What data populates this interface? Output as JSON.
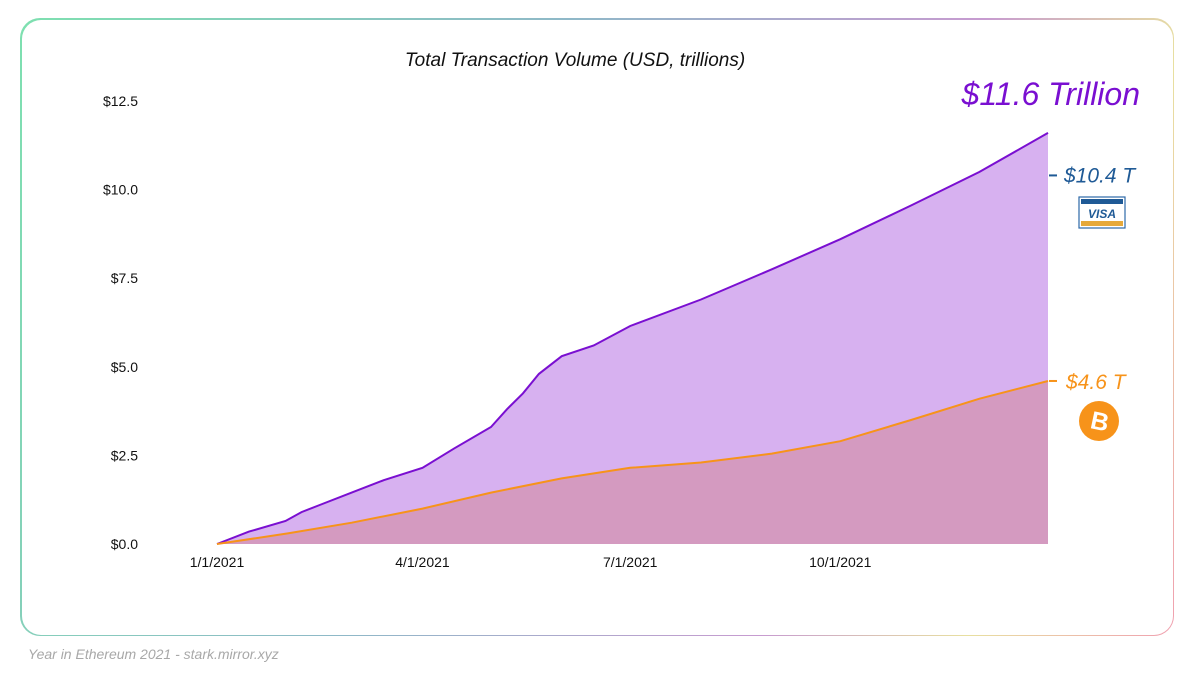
{
  "chart_data": {
    "type": "area",
    "title": "Total Transaction Volume (USD, trillions)",
    "xlabel": "",
    "ylabel": "",
    "ylim": [
      0,
      12.5
    ],
    "xlim": [
      "2021-01-01",
      "2021-12-31"
    ],
    "y_ticks": [
      "$0.0",
      "$2.5",
      "$5.0",
      "$7.5",
      "$10.0",
      "$12.5"
    ],
    "y_tick_values": [
      0,
      2.5,
      5,
      7.5,
      10,
      12.5
    ],
    "x_ticks": [
      "1/1/2021",
      "4/1/2021",
      "7/1/2021",
      "10/1/2021"
    ],
    "x_tick_values": [
      "2021-01-01",
      "2021-04-01",
      "2021-07-01",
      "2021-10-01"
    ],
    "grid": false,
    "series": [
      {
        "color": "#7a0fd1",
        "fill": "#d7b1f0",
        "x": [
          "2021-01-01",
          "2021-01-15",
          "2021-01-31",
          "2021-02-07",
          "2021-02-15",
          "2021-03-01",
          "2021-03-15",
          "2021-04-01",
          "2021-04-15",
          "2021-05-01",
          "2021-05-08",
          "2021-05-15",
          "2021-05-22",
          "2021-06-01",
          "2021-06-15",
          "2021-07-01",
          "2021-08-01",
          "2021-09-01",
          "2021-10-01",
          "2021-11-01",
          "2021-12-01",
          "2021-12-31"
        ],
        "values": [
          0,
          0.35,
          0.65,
          0.9,
          1.1,
          1.45,
          1.8,
          2.15,
          2.7,
          3.3,
          3.8,
          4.25,
          4.8,
          5.3,
          5.6,
          6.15,
          6.9,
          7.75,
          8.6,
          9.55,
          10.5,
          11.6
        ]
      },
      {
        "color": "#f7931a",
        "fill": "#d49ac0",
        "x": [
          "2021-01-01",
          "2021-02-01",
          "2021-03-01",
          "2021-04-01",
          "2021-05-01",
          "2021-06-01",
          "2021-07-01",
          "2021-08-01",
          "2021-09-01",
          "2021-10-01",
          "2021-11-01",
          "2021-12-01",
          "2021-12-31"
        ],
        "values": [
          0,
          0.3,
          0.6,
          1.0,
          1.45,
          1.85,
          2.15,
          2.3,
          2.55,
          2.9,
          3.5,
          4.1,
          4.6
        ]
      }
    ],
    "annotations": {
      "eth_total": {
        "text": "$11.6 Trillion",
        "color": "#7a0fd1"
      },
      "visa": {
        "text": "$10.4 T",
        "value": 10.4,
        "color": "#1f5a96",
        "logo": "VISA",
        "icon": "visa-card-icon"
      },
      "btc": {
        "text": "$4.6 T",
        "value": 4.6,
        "color": "#f7931a",
        "icon": "bitcoin-icon"
      }
    }
  },
  "footer": "Year in Ethereum 2021 - stark.mirror.xyz"
}
